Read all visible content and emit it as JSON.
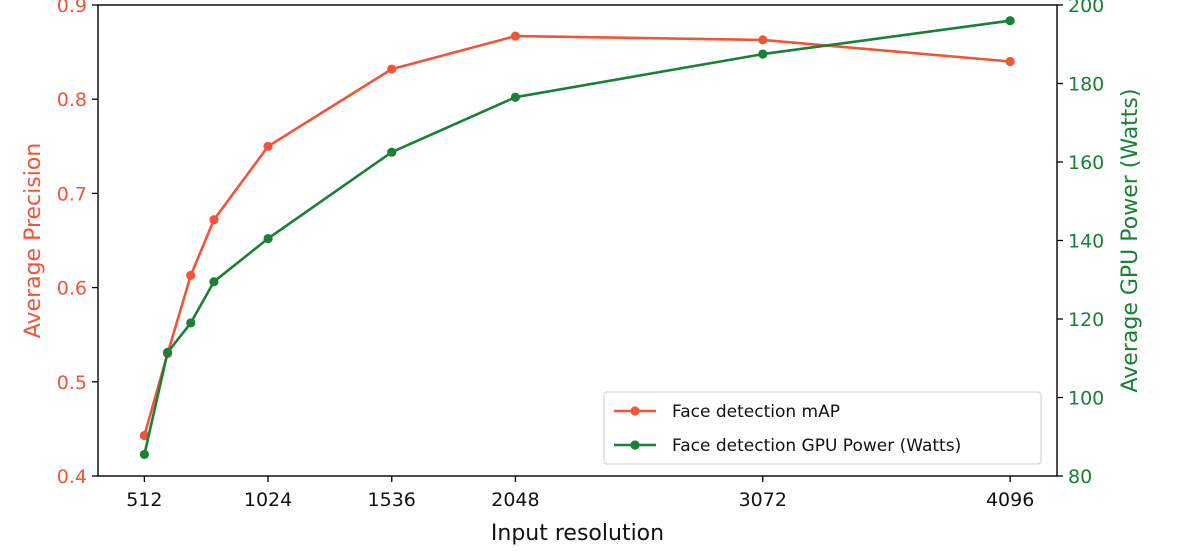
{
  "colors": {
    "map": "#f0553a",
    "power": "#1a8036",
    "axis": "#000000"
  },
  "chart_data": {
    "type": "line",
    "xlabel": "Input resolution",
    "ylabel_left": "Average Precision",
    "ylabel_right": "Average GPU Power (Watts)",
    "x_ticks": [
      512,
      1024,
      1536,
      2048,
      3072,
      4096
    ],
    "x_tick_labels": [
      "512",
      "1024",
      "1536",
      "2048",
      "3072",
      "4096"
    ],
    "xlim": [
      320,
      4290
    ],
    "ylim_left": [
      0.4,
      0.9
    ],
    "ylim_right": [
      80,
      200
    ],
    "y_left_ticks": [
      0.4,
      0.5,
      0.6,
      0.7,
      0.8,
      0.9
    ],
    "y_left_tick_labels": [
      "0.4",
      "0.5",
      "0.6",
      "0.7",
      "0.8",
      "0.9"
    ],
    "y_right_ticks": [
      80,
      100,
      120,
      140,
      160,
      180,
      200
    ],
    "y_right_tick_labels": [
      "80",
      "100",
      "120",
      "140",
      "160",
      "180",
      "200"
    ],
    "legend_position": "bottom-right",
    "series": [
      {
        "name": "Face detection mAP",
        "axis": "left",
        "x": [
          512,
          608,
          704,
          800,
          1024,
          1536,
          2048,
          3072,
          4096
        ],
        "y": [
          0.443,
          0.53,
          0.613,
          0.672,
          0.75,
          0.832,
          0.867,
          0.863,
          0.84
        ]
      },
      {
        "name": "Face detection GPU Power (Watts)",
        "axis": "right",
        "x": [
          512,
          608,
          704,
          800,
          1024,
          1536,
          2048,
          3072,
          4096
        ],
        "y": [
          85.5,
          111.5,
          119,
          129.5,
          140.5,
          162.5,
          176.5,
          187.5,
          196
        ]
      }
    ]
  }
}
